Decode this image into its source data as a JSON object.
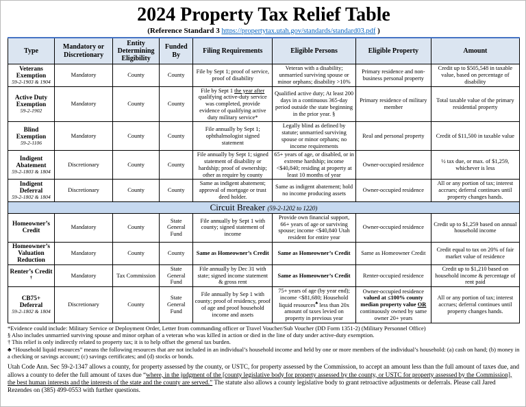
{
  "page": {
    "title": "2024 Property Tax Relief Table",
    "subtitle_prefix": "(Reference Standard 3",
    "subtitle_link": "https://propertytax.utah.gov/standards/standard03.pdf",
    "subtitle_suffix": ")"
  },
  "colors": {
    "header_row_bg": "#dbe5f1",
    "band_row_bg": "#c6d9f0",
    "header_top_border": "#4472c4",
    "link": "#0563c1"
  },
  "table": {
    "headers": [
      "Type",
      "Mandatory or Discretionary",
      "Entity Determining Eligibility",
      "Funded By",
      "Filing Requirements",
      "Eligible Persons",
      "Eligible Property",
      "Amount"
    ],
    "rows": [
      {
        "type": {
          "name": "Veterans Exemption",
          "cite": "59-2-1903 & 1904"
        },
        "mandatory": "Mandatory",
        "entity": "County",
        "funded": "County",
        "filing": "File by Sept 1; proof of service, proof of disability",
        "persons": "Veteran with a disability; unmarried surviving spouse or minor orphans; disability >10%",
        "property": "Primary residence and non-business personal property",
        "amount": "Credit up to $505,548 in taxable value, based on percentage of disability"
      },
      {
        "type": {
          "name": "Active Duty Exemption",
          "cite": "59-2-1902"
        },
        "mandatory": "Mandatory",
        "entity": "County",
        "funded": "County",
        "filing": [
          {
            "t": "File by Sept 1 "
          },
          {
            "t": "the year after",
            "u": true
          },
          {
            "t": " qualifying active-duty service was completed, provide evidence of qualifying active duty military service*"
          }
        ],
        "persons": "Qualified active duty; At least 200 days in a continuous 365-day period outside the state beginning in the prior year. §",
        "property": "Primary residence of military member",
        "amount": "Total taxable value of the primary residential property"
      },
      {
        "type": {
          "name": "Blind Exemption",
          "cite": "59-2-1106"
        },
        "mandatory": "Mandatory",
        "entity": "County",
        "funded": "County",
        "filing": "File annually by Sept 1; ophthalmologist signed statement",
        "persons": "Legally blind as defined by statute; unmarried surviving spouse or minor orphans; no income requirements",
        "property": "Real and personal property",
        "amount": "Credit of $11,500 in taxable value"
      },
      {
        "type": {
          "name": "Indigent Abatement",
          "cite": "59-2-1803 & 1804"
        },
        "mandatory": "Discretionary",
        "entity": "County",
        "funded": "County",
        "filing": "File annually by Sept 1; signed statement of disability or hardship; proof of ownership; other as require by county",
        "persons": "65+ years of age, or disabled, or in extreme hardship; income <$40,840; residing at property at least 10 months of year",
        "property": "Owner-occupied residence",
        "amount": "½ tax due, or max. of $1,259, whichever is less"
      },
      {
        "type": {
          "name": "Indigent Deferral",
          "cite": "59-2-1802 & 1804"
        },
        "mandatory": "Discretionary",
        "entity": "County",
        "funded": "County",
        "filing": "Same as indigent abatement; approval of mortgage or trust deed holder.",
        "persons": "Same as indigent abatement; hold no income producing assets",
        "property": "Owner-occupied residence",
        "amount": "All or any portion of tax; interest accrues; deferral continues until property changes hands."
      },
      {
        "band": {
          "title": "Circuit Breaker",
          "cite": "(59-2-1202 to 1220)"
        }
      },
      {
        "type": {
          "name": "Homeowner’s Credit",
          "cite": ""
        },
        "mandatory": "Mandatory",
        "entity": "County",
        "funded": "State General Fund",
        "filing": "File annually by Sept 1 with county; signed statement of income",
        "persons": "Provide own financial support, 66+ years of age or surviving spouse; income <$40,840 Utah resident for entire year",
        "property": "Owner-occupied residence",
        "amount": "Credit up to $1,259 based on annual household income"
      },
      {
        "type": {
          "name": "Homeowner’s Valuation Reduction",
          "cite": ""
        },
        "mandatory": "Mandatory",
        "entity": "County",
        "funded": "County",
        "filing": [
          {
            "t": "Same as Homeowner’s Credit",
            "b": true
          }
        ],
        "persons": [
          {
            "t": "Same as Homeowner’s Credit",
            "b": true
          }
        ],
        "property": "Same as Homeowner Credit",
        "amount": "Credit equal to tax on 20% of fair market value of residence"
      },
      {
        "type": {
          "name": [
            {
              "t": "Renter’s Credit "
            },
            {
              "t": "†",
              "sup": true
            }
          ],
          "cite": ""
        },
        "mandatory": "Mandatory",
        "entity": "Tax Commission",
        "funded": "State General Fund",
        "filing": "File annually by Dec 31 with state; signed income statement & gross rent",
        "persons": [
          {
            "t": "Same as Homeowner’s Credit",
            "b": true
          }
        ],
        "property": "Renter-occupied residence",
        "amount": "Credit up to $1,210 based on household income & percentage of rent paid"
      },
      {
        "type": {
          "name": "CB75+ Deferral",
          "cite": "59-2-1802 & 1804"
        },
        "mandatory": "Discretionary",
        "entity": "County",
        "funded": "State General Fund",
        "filing": "File annually by Sep 1 with county; proof of residency, proof of age and proof household income and assets",
        "persons": [
          {
            "t": "75+ years of age (by year end); income <$81,680; Household liquid resources"
          },
          {
            "t": "♣",
            "sup": true
          },
          {
            "t": " less than 20x amount of taxes levied on property in previous year"
          }
        ],
        "property": [
          {
            "t": "Owner-occupied residence "
          },
          {
            "t": "valued at ≤100% county median property value ",
            "b": true
          },
          {
            "t": "OR",
            "b": true,
            "u": true
          },
          {
            "t": " continuously owned by same owner 20+ years"
          }
        ],
        "amount": "All or any portion of tax; interest accrues; deferral continues until property changes hands."
      }
    ]
  },
  "footnotes": [
    "*Evidence could include: Military Service or Deployment Order, Letter from commanding officer or Travel Voucher/Sub Voucher (DD Form 1351-2) (Military Personnel Office)",
    "§ Also includes unmarried surviving spouse and minor orphan of a veteran who was killed in action or died in the line of duty under active-duty exemption.",
    "† This relief is only indirectly related to property tax; it is to help offset the general tax burden.",
    "♣ “Household liquid resources” means the following resources that are not included in an individual’s household income and held by one or more members of the individual’s household: (a) cash on hand; (b) money in a checking or savings account; (c) savings certificates; and (d) stocks or bonds."
  ],
  "closing_paragraph": [
    {
      "t": "Utah Code Ann. Sec 59-2-1347 allows a county, for property assessed by the county, or USTC, for property assessed by the Commission, to accept an amount less than the full amount of taxes due, and allows a county to defer the full amount of taxes due “"
    },
    {
      "t": "where, in the judgment of the [county legislative body for property assessed by the county, or USTC for property assessed by the Commission], the best human interests and the interests of the state and the county are served.”",
      "u": true
    },
    {
      "t": "  The statute also allows a county legislative body to grant retroactive adjustments or deferrals. Please call Jared Rezendes on (385) 499-0553 with further questions."
    }
  ]
}
